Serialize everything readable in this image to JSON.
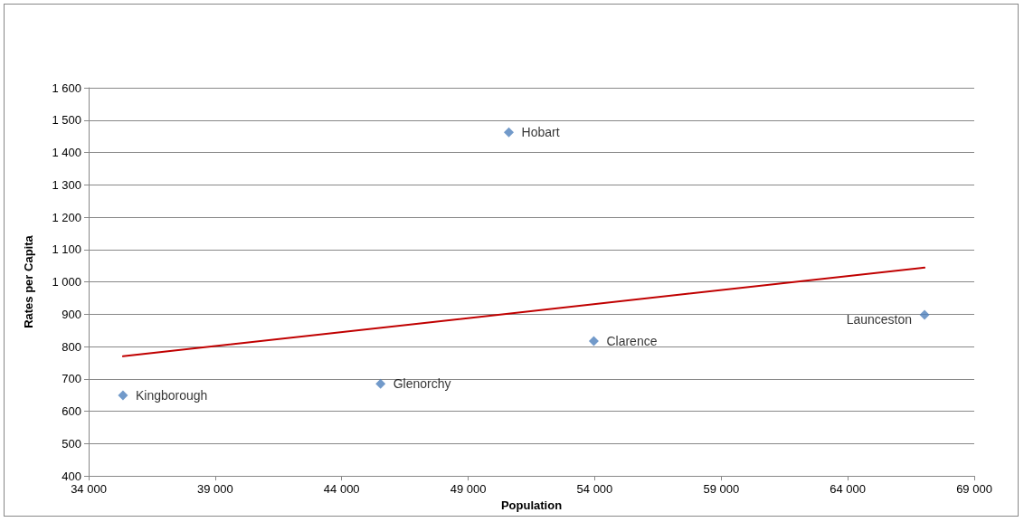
{
  "chart_data": {
    "type": "scatter",
    "xlabel": "Population",
    "ylabel": "Rates per Capita",
    "series": [
      {
        "color": "#4f81bd",
        "marker": "diamond",
        "x": [
          35357,
          45536,
          50607,
          53964,
          67036
        ],
        "values": [
          649,
          685,
          1462,
          817,
          898
        ]
      },
      {
        "type": "line",
        "color": "#c00000",
        "marker": "none",
        "x": [
          35357,
          67036
        ],
        "values": [
          770,
          1044
        ]
      }
    ],
    "annotations": [
      {
        "text": "Kingborough",
        "x": 35357,
        "y": 649
      },
      {
        "text": "Glenorchy",
        "x": 45536,
        "y": 685
      },
      {
        "text": "Hobart",
        "x": 50607,
        "y": 1462
      },
      {
        "text": "Clarence",
        "x": 53964,
        "y": 817
      },
      {
        "text": "Launceston",
        "x": 67036,
        "y": 898
      }
    ],
    "xlim": [
      34000,
      69000
    ],
    "xticks": [
      {
        "value": 34000,
        "label": "34 000"
      },
      {
        "value": 39000,
        "label": "39 000"
      },
      {
        "value": 44000,
        "label": "44 000"
      },
      {
        "value": 49000,
        "label": "49 000"
      },
      {
        "value": 54000,
        "label": "54 000"
      },
      {
        "value": 59000,
        "label": "59 000"
      },
      {
        "value": 64000,
        "label": "64 000"
      },
      {
        "value": 69000,
        "label": "69 000"
      }
    ],
    "ylim": [
      400,
      1600
    ],
    "yticks": [
      {
        "value": 400,
        "label": "400"
      },
      {
        "value": 500,
        "label": "500"
      },
      {
        "value": 600,
        "label": "600"
      },
      {
        "value": 700,
        "label": "700"
      },
      {
        "value": 800,
        "label": "800"
      },
      {
        "value": 900,
        "label": "900"
      },
      {
        "value": 1000,
        "label": "1 000"
      },
      {
        "value": 1100,
        "label": "1 100"
      },
      {
        "value": 1200,
        "label": "1 200"
      },
      {
        "value": 1300,
        "label": "1 300"
      },
      {
        "value": 1400,
        "label": "1 400"
      },
      {
        "value": 1500,
        "label": "1 500"
      },
      {
        "value": 1600,
        "label": "1 600"
      }
    ],
    "grid": "y"
  }
}
